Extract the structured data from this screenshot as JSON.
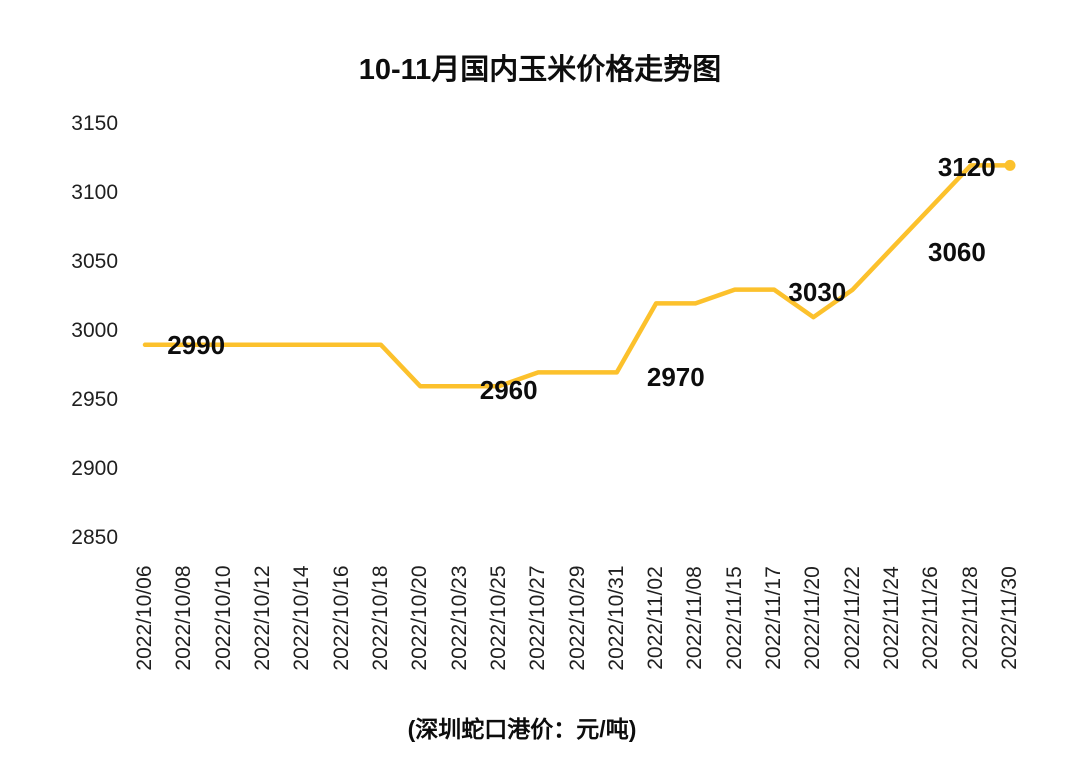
{
  "chart_data": {
    "type": "line",
    "title": "10-11月国内玉米价格走势图",
    "footer": "(深圳蛇口港价：元/吨)",
    "x": [
      "2022/10/06",
      "2022/10/08",
      "2022/10/10",
      "2022/10/12",
      "2022/10/14",
      "2022/10/16",
      "2022/10/18",
      "2022/10/20",
      "2022/10/23",
      "2022/10/25",
      "2022/10/27",
      "2022/10/29",
      "2022/10/31",
      "2022/11/02",
      "2022/11/08",
      "2022/11/15",
      "2022/11/17",
      "2022/11/20",
      "2022/11/22",
      "2022/11/24",
      "2022/11/26",
      "2022/11/28",
      "2022/11/30"
    ],
    "values": [
      2990,
      2990,
      2990,
      2990,
      2990,
      2990,
      2990,
      2960,
      2960,
      2960,
      2970,
      2970,
      2970,
      3020,
      3020,
      3030,
      3030,
      3010,
      3030,
      3060,
      3090,
      3120,
      3120
    ],
    "ylim": [
      2850,
      3150
    ],
    "yticks": [
      3150,
      3100,
      3050,
      3000,
      2950,
      2900,
      2850
    ],
    "line_color": "#FCC12C",
    "axis_label_color": "#202020",
    "grid": false,
    "legend": "none",
    "end_marker": true,
    "annotations": [
      {
        "text": "2990",
        "x_index": 1.3,
        "value": 2990
      },
      {
        "text": "2960",
        "x_index": 9.25,
        "value": 2957
      },
      {
        "text": "2970",
        "x_index": 13.5,
        "value": 2967
      },
      {
        "text": "3030",
        "x_index": 17.1,
        "value": 3028
      },
      {
        "text": "3060",
        "x_index": 20.65,
        "value": 3057
      },
      {
        "text": "3120",
        "x_index": 20.9,
        "value": 3119
      }
    ]
  }
}
